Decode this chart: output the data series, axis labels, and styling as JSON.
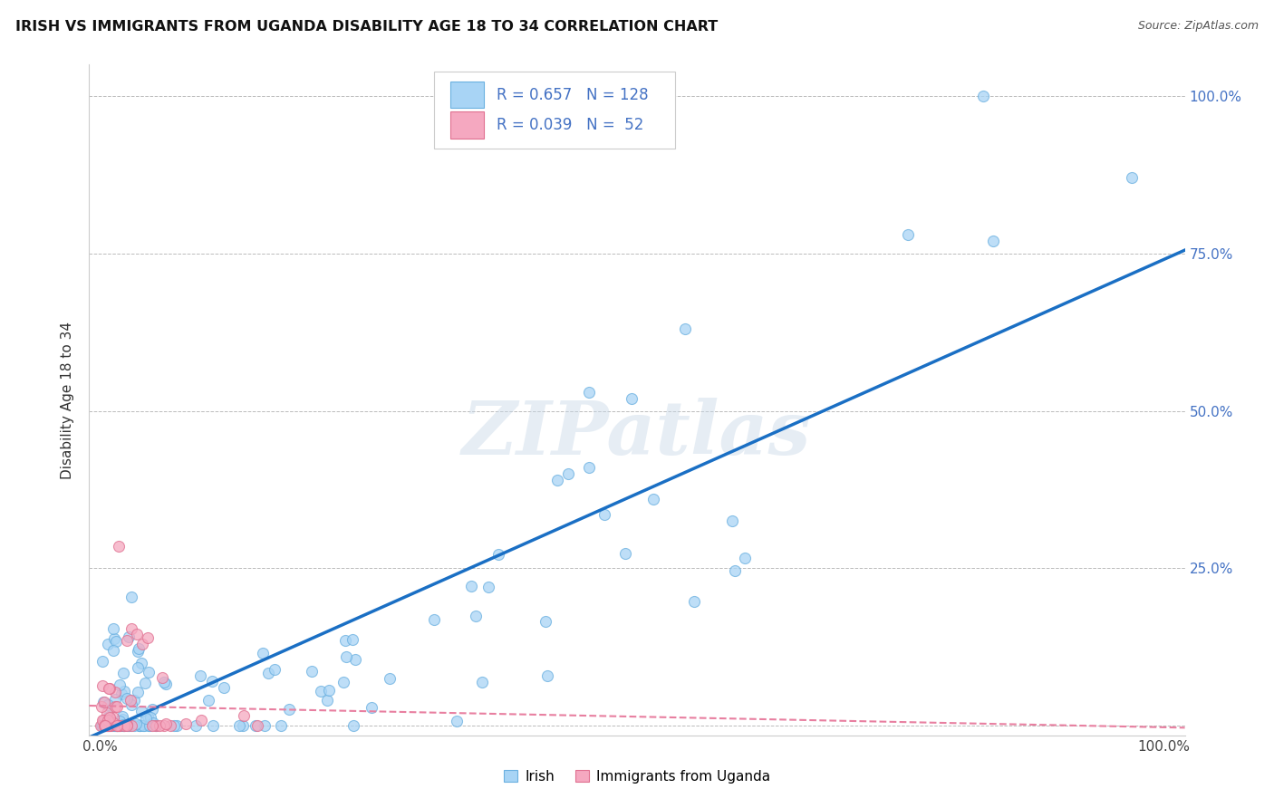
{
  "title": "IRISH VS IMMIGRANTS FROM UGANDA DISABILITY AGE 18 TO 34 CORRELATION CHART",
  "source": "Source: ZipAtlas.com",
  "ylabel": "Disability Age 18 to 34",
  "watermark": "ZIPatlas",
  "irish_color": "#a8d4f5",
  "irish_edge_color": "#6ab0e0",
  "uganda_color": "#f5a8c0",
  "uganda_edge_color": "#e07090",
  "irish_line_color": "#1a6fc4",
  "uganda_line_color": "#e87fa0",
  "background_color": "#ffffff",
  "grid_color": "#bbbbbb",
  "legend_R1": "R = 0.657",
  "legend_N1": "N = 128",
  "legend_R2": "R = 0.039",
  "legend_N2": "N =  52",
  "ytick_color": "#4472C4",
  "title_color": "#111111",
  "source_color": "#555555"
}
